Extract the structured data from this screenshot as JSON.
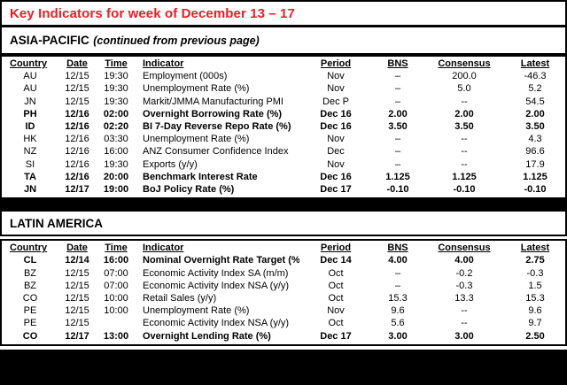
{
  "page": {
    "title": "Key Indicators for week of December 13 – 17",
    "title_color": "#ED1C24"
  },
  "columns": [
    "Country",
    "Date",
    "Time",
    "Indicator",
    "Period",
    "BNS",
    "Consensus",
    "Latest"
  ],
  "sections": [
    {
      "name": "ASIA-PACIFIC",
      "note": "(continued from previous page)",
      "rows": [
        {
          "country": "AU",
          "date": "12/15",
          "time": "19:30",
          "indicator": "Employment (000s)",
          "period": "Nov",
          "bns": "–",
          "consensus": "200.0",
          "latest": "-46.3",
          "bold": false
        },
        {
          "country": "AU",
          "date": "12/15",
          "time": "19:30",
          "indicator": "Unemployment Rate (%)",
          "period": "Nov",
          "bns": "–",
          "consensus": "5.0",
          "latest": "5.2",
          "bold": false
        },
        {
          "country": "JN",
          "date": "12/15",
          "time": "19:30",
          "indicator": "Markit/JMMA Manufacturing PMI",
          "period": "Dec P",
          "bns": "–",
          "consensus": "--",
          "latest": "54.5",
          "bold": false
        },
        {
          "country": "PH",
          "date": "12/16",
          "time": "02:00",
          "indicator": "Overnight Borrowing Rate (%)",
          "period": "Dec 16",
          "bns": "2.00",
          "consensus": "2.00",
          "latest": "2.00",
          "bold": true
        },
        {
          "country": "ID",
          "date": "12/16",
          "time": "02:20",
          "indicator": "BI 7-Day Reverse Repo Rate (%)",
          "period": "Dec 16",
          "bns": "3.50",
          "consensus": "3.50",
          "latest": "3.50",
          "bold": true
        },
        {
          "country": "HK",
          "date": "12/16",
          "time": "03:30",
          "indicator": "Unemployment Rate (%)",
          "period": "Nov",
          "bns": "–",
          "consensus": "--",
          "latest": "4.3",
          "bold": false
        },
        {
          "country": "NZ",
          "date": "12/16",
          "time": "16:00",
          "indicator": "ANZ Consumer Confidence Index",
          "period": "Dec",
          "bns": "–",
          "consensus": "--",
          "latest": "96.6",
          "bold": false
        },
        {
          "country": "SI",
          "date": "12/16",
          "time": "19:30",
          "indicator": "Exports (y/y)",
          "period": "Nov",
          "bns": "–",
          "consensus": "--",
          "latest": "17.9",
          "bold": false
        },
        {
          "country": "TA",
          "date": "12/16",
          "time": "20:00",
          "indicator": "Benchmark Interest Rate",
          "period": "Dec 16",
          "bns": "1.125",
          "consensus": "1.125",
          "latest": "1.125",
          "bold": true
        },
        {
          "country": "JN",
          "date": "12/17",
          "time": "19:00",
          "indicator": "BoJ Policy Rate (%)",
          "period": "Dec 17",
          "bns": "-0.10",
          "consensus": "-0.10",
          "latest": "-0.10",
          "bold": true
        }
      ]
    },
    {
      "name": "LATIN AMERICA",
      "note": "",
      "rows": [
        {
          "country": "CL",
          "date": "12/14",
          "time": "16:00",
          "indicator": "Nominal Overnight Rate Target (%)",
          "period": "Dec 14",
          "bns": "4.00",
          "consensus": "4.00",
          "latest": "2.75",
          "bold": true
        },
        {
          "country": "BZ",
          "date": "12/15",
          "time": "07:00",
          "indicator": "Economic Activity Index SA (m/m)",
          "period": "Oct",
          "bns": "–",
          "consensus": "-0.2",
          "latest": "-0.3",
          "bold": false
        },
        {
          "country": "BZ",
          "date": "12/15",
          "time": "07:00",
          "indicator": "Economic Activity Index NSA (y/y)",
          "period": "Oct",
          "bns": "–",
          "consensus": "-0.3",
          "latest": "1.5",
          "bold": false
        },
        {
          "country": "CO",
          "date": "12/15",
          "time": "10:00",
          "indicator": "Retail Sales (y/y)",
          "period": "Oct",
          "bns": "15.3",
          "consensus": "13.3",
          "latest": "15.3",
          "bold": false
        },
        {
          "country": "PE",
          "date": "12/15",
          "time": "10:00",
          "indicator": "Unemployment Rate (%)",
          "period": "Nov",
          "bns": "9.6",
          "consensus": "--",
          "latest": "9.6",
          "bold": false
        },
        {
          "country": "PE",
          "date": "12/15",
          "time": "",
          "indicator": "Economic Activity Index NSA (y/y)",
          "period": "Oct",
          "bns": "5.6",
          "consensus": "--",
          "latest": "9.7",
          "bold": false
        },
        {
          "country": "CO",
          "date": "12/17",
          "time": "13:00",
          "indicator": "Overnight Lending Rate (%)",
          "period": "Dec 17",
          "bns": "3.00",
          "consensus": "3.00",
          "latest": "2.50",
          "bold": true
        }
      ]
    }
  ]
}
